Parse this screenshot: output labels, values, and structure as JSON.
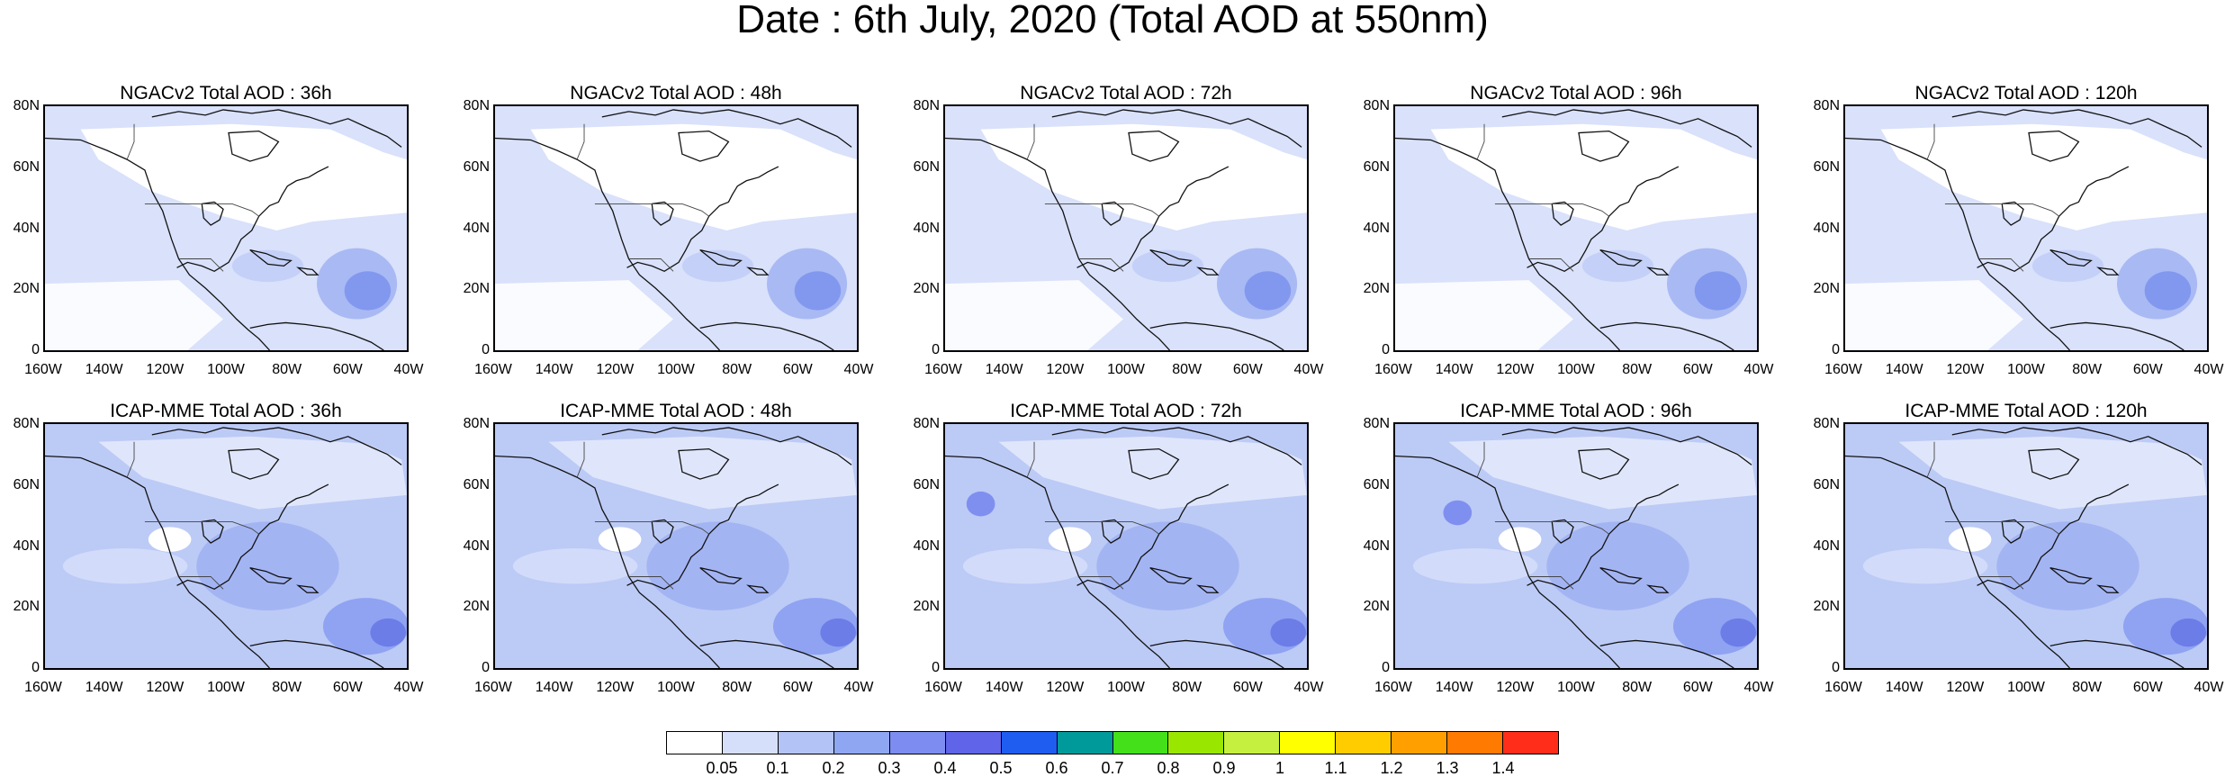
{
  "title": "Date : 6th July, 2020 (Total AOD at 550nm)",
  "panels": [
    {
      "title": "NGACv2 Total AOD : 36h",
      "model": "NGACv2",
      "lead": "36h"
    },
    {
      "title": "NGACv2 Total AOD : 48h",
      "model": "NGACv2",
      "lead": "48h"
    },
    {
      "title": "NGACv2 Total AOD : 72h",
      "model": "NGACv2",
      "lead": "72h"
    },
    {
      "title": "NGACv2 Total AOD : 96h",
      "model": "NGACv2",
      "lead": "96h"
    },
    {
      "title": "NGACv2 Total AOD : 120h",
      "model": "NGACv2",
      "lead": "120h"
    },
    {
      "title": "ICAP-MME Total AOD : 36h",
      "model": "ICAP-MME",
      "lead": "36h"
    },
    {
      "title": "ICAP-MME Total AOD : 48h",
      "model": "ICAP-MME",
      "lead": "48h"
    },
    {
      "title": "ICAP-MME Total AOD : 72h",
      "model": "ICAP-MME",
      "lead": "72h"
    },
    {
      "title": "ICAP-MME Total AOD : 96h",
      "model": "ICAP-MME",
      "lead": "96h"
    },
    {
      "title": "ICAP-MME Total AOD : 120h",
      "model": "ICAP-MME",
      "lead": "120h"
    }
  ],
  "lat_ticks": [
    "80N",
    "60N",
    "40N",
    "20N",
    "0"
  ],
  "lon_ticks": [
    "160W",
    "140W",
    "120W",
    "100W",
    "80W",
    "60W",
    "40W"
  ],
  "colorbar": {
    "labels": [
      "0.05",
      "0.1",
      "0.2",
      "0.3",
      "0.4",
      "0.5",
      "0.6",
      "0.7",
      "0.8",
      "0.9",
      "1",
      "1.1",
      "1.2",
      "1.3",
      "1.4"
    ],
    "colors": [
      "#ffffff",
      "#d6dffa",
      "#b3c3f5",
      "#8fa6f2",
      "#7d8cf0",
      "#5f64e8",
      "#1f5cf0",
      "#009a9a",
      "#44e01a",
      "#99e600",
      "#c6f040",
      "#ffff00",
      "#ffcc00",
      "#ffa000",
      "#ff7a00",
      "#ff2d1a"
    ]
  }
}
